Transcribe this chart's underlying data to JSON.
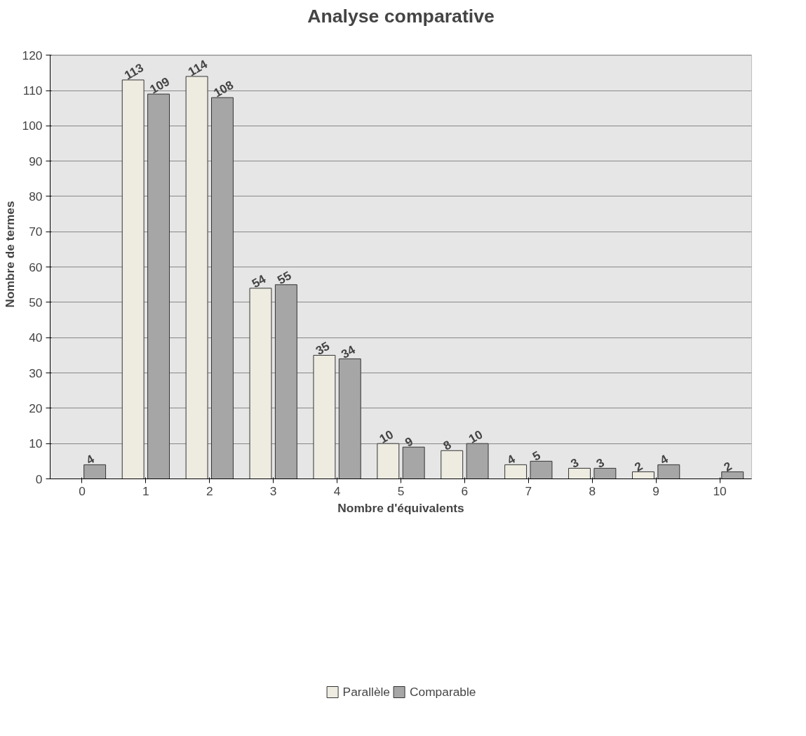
{
  "chart_data": {
    "type": "bar",
    "title": "Analyse comparative",
    "xlabel": "Nombre d'équivalents",
    "ylabel": "Nombre de termes",
    "categories": [
      "0",
      "1",
      "2",
      "3",
      "4",
      "5",
      "6",
      "7",
      "8",
      "9",
      "10"
    ],
    "series": [
      {
        "name": "Parallèle",
        "color": "#eeece1",
        "values": [
          null,
          113,
          114,
          54,
          35,
          10,
          8,
          4,
          3,
          2,
          null
        ]
      },
      {
        "name": "Comparable",
        "color": "#a6a6a6",
        "values": [
          4,
          109,
          108,
          55,
          34,
          9,
          10,
          5,
          3,
          4,
          2
        ]
      }
    ],
    "ylim": [
      0,
      120
    ],
    "yticks": [
      0,
      10,
      20,
      30,
      40,
      50,
      60,
      70,
      80,
      90,
      100,
      110,
      120
    ],
    "grid": "y",
    "legend": "bottom",
    "data_labels": true
  }
}
